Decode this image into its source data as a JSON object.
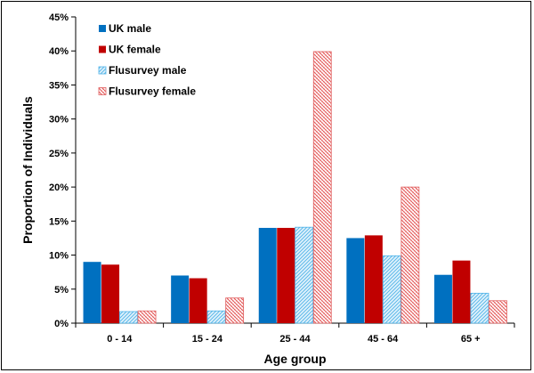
{
  "chart_data": {
    "type": "bar",
    "categories": [
      "0 - 14",
      "15 - 24",
      "25 - 44",
      "45 - 64",
      "65 +"
    ],
    "series": [
      {
        "name": "UK male",
        "values": [
          9.0,
          7.0,
          14.0,
          12.5,
          7.1
        ],
        "color": "#0070c0",
        "pattern": "solid"
      },
      {
        "name": "UK female",
        "values": [
          8.6,
          6.6,
          14.0,
          12.9,
          9.2
        ],
        "color": "#c00000",
        "pattern": "solid"
      },
      {
        "name": "Flusurvey male",
        "values": [
          1.7,
          1.8,
          14.1,
          9.9,
          4.4
        ],
        "color": "#4fb3e8",
        "pattern": "hatch-light-blue"
      },
      {
        "name": "Flusurvey female",
        "values": [
          1.8,
          3.7,
          39.9,
          20.0,
          3.3
        ],
        "color": "#e06060",
        "pattern": "hatch-red"
      }
    ],
    "title": "",
    "xlabel": "Age group",
    "ylabel": "Proportion of Individuals",
    "ylim": [
      0,
      45
    ],
    "yticks": [
      "0%",
      "5%",
      "10%",
      "15%",
      "20%",
      "25%",
      "30%",
      "35%",
      "40%",
      "45%"
    ],
    "grid": false,
    "legend_placement": "top-left"
  }
}
